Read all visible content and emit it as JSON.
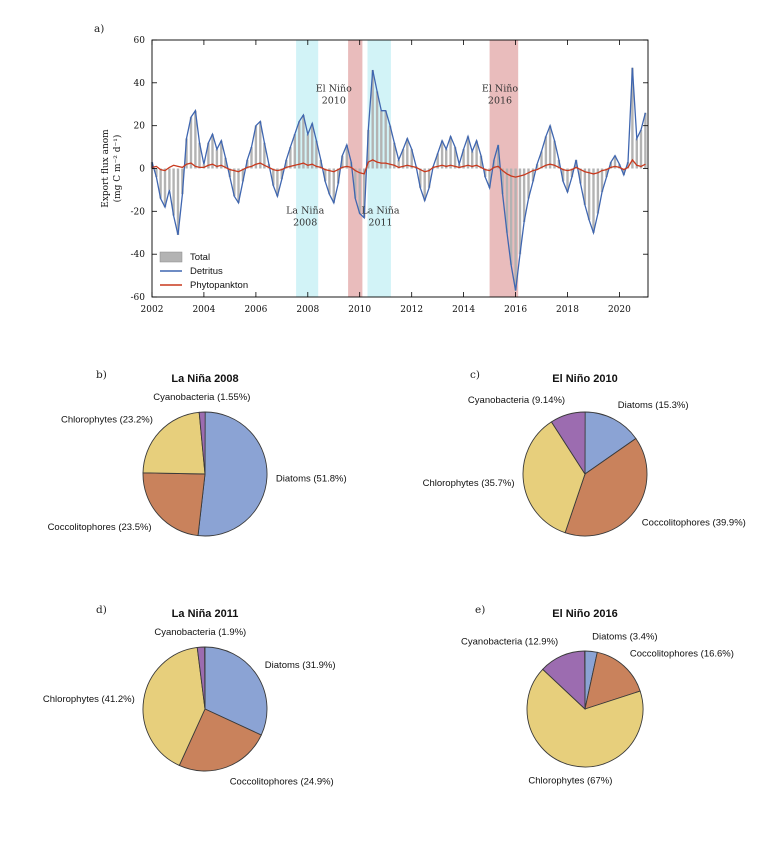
{
  "colors": {
    "total": "#b3b3b3",
    "detritus": "#3f66b0",
    "phytoplankton": "#c8391d",
    "elnino_band": "#e9bcbc",
    "lanina_band": "#d2f3f7",
    "axis": "#000000",
    "pie_edge": "#3a3a3a",
    "pie_slices": {
      "Diatoms": "#8ba3d4",
      "Coccolitophores": "#c9825c",
      "Chlorophytes": "#e7cf7c",
      "Cyanobacteria": "#9c6cb0"
    }
  },
  "chart_data": [
    {
      "id": "export-flux-timeseries",
      "panel_label": "a)",
      "type": "area",
      "ylabel": [
        "Export flux anom",
        "(mg C m⁻² d⁻¹)"
      ],
      "xlim": [
        2002,
        2021.1
      ],
      "ylim": [
        -60,
        60
      ],
      "xticks": [
        2002,
        2004,
        2006,
        2008,
        2010,
        2012,
        2014,
        2016,
        2018,
        2020
      ],
      "yticks": [
        -60,
        -40,
        -20,
        0,
        20,
        40,
        60
      ],
      "grid": false,
      "bands": [
        {
          "kind": "lanina",
          "x0": 2007.55,
          "x1": 2008.4
        },
        {
          "kind": "elnino",
          "x0": 2009.55,
          "x1": 2010.1
        },
        {
          "kind": "lanina",
          "x0": 2010.3,
          "x1": 2011.2
        },
        {
          "kind": "elnino",
          "x0": 2015.0,
          "x1": 2016.1
        }
      ],
      "annotations": [
        {
          "lines": [
            "El Niño",
            "2010"
          ],
          "x": 2009.0,
          "y": 36
        },
        {
          "lines": [
            "El Niño",
            "2016"
          ],
          "x": 2015.4,
          "y": 36
        },
        {
          "lines": [
            "La Niña",
            "2008"
          ],
          "x": 2007.9,
          "y": -21
        },
        {
          "lines": [
            "La Niña",
            "2011"
          ],
          "x": 2010.8,
          "y": -21
        }
      ],
      "legend": [
        {
          "label": "Total",
          "swatch": "area"
        },
        {
          "label": "Detritus",
          "swatch": "line"
        },
        {
          "label": "Phytopankton",
          "swatch": "line"
        }
      ],
      "x": [
        2002,
        2002.17,
        2002.33,
        2002.5,
        2002.67,
        2002.83,
        2003,
        2003.17,
        2003.33,
        2003.5,
        2003.67,
        2003.83,
        2004,
        2004.17,
        2004.33,
        2004.5,
        2004.67,
        2004.83,
        2005,
        2005.17,
        2005.33,
        2005.5,
        2005.67,
        2005.83,
        2006,
        2006.17,
        2006.33,
        2006.5,
        2006.67,
        2006.83,
        2007,
        2007.17,
        2007.33,
        2007.5,
        2007.67,
        2007.83,
        2008,
        2008.17,
        2008.33,
        2008.5,
        2008.67,
        2008.83,
        2009,
        2009.17,
        2009.33,
        2009.5,
        2009.67,
        2009.83,
        2010,
        2010.17,
        2010.33,
        2010.5,
        2010.67,
        2010.83,
        2011,
        2011.17,
        2011.33,
        2011.5,
        2011.67,
        2011.83,
        2012,
        2012.17,
        2012.33,
        2012.5,
        2012.67,
        2012.83,
        2013,
        2013.17,
        2013.33,
        2013.5,
        2013.67,
        2013.83,
        2014,
        2014.17,
        2014.33,
        2014.5,
        2014.67,
        2014.83,
        2015,
        2015.17,
        2015.33,
        2015.5,
        2015.67,
        2015.83,
        2016,
        2016.17,
        2016.33,
        2016.5,
        2016.67,
        2016.83,
        2017,
        2017.17,
        2017.33,
        2017.5,
        2017.67,
        2017.83,
        2018,
        2018.17,
        2018.33,
        2018.5,
        2018.67,
        2018.83,
        2019,
        2019.17,
        2019.33,
        2019.5,
        2019.67,
        2019.83,
        2020,
        2020.17,
        2020.33,
        2020.5,
        2020.67,
        2020.83,
        2021
      ],
      "series": [
        {
          "name": "Total",
          "style": "bars",
          "values": [
            3,
            -4,
            -14,
            -18,
            -10,
            -22,
            -31,
            -12,
            14,
            24,
            27,
            12,
            2,
            12,
            16,
            9,
            13,
            5,
            -4,
            -13,
            -16,
            -6,
            4,
            10,
            20,
            22,
            12,
            2,
            -8,
            -13,
            -5,
            4,
            10,
            16,
            22,
            25,
            16,
            21,
            13,
            4,
            -6,
            -12,
            -16,
            -7,
            6,
            11,
            3,
            -14,
            -21,
            -23,
            18,
            46,
            36,
            27,
            27,
            20,
            12,
            4,
            9,
            14,
            9,
            1,
            -9,
            -15,
            -9,
            1,
            7,
            13,
            9,
            15,
            10,
            2,
            9,
            15,
            8,
            13,
            6,
            -4,
            -9,
            4,
            11,
            -12,
            -30,
            -45,
            -57,
            -40,
            -25,
            -14,
            -6,
            2,
            8,
            15,
            20,
            13,
            4,
            -6,
            -11,
            -4,
            4,
            -7,
            -17,
            -24,
            -30,
            -21,
            -11,
            -4,
            3,
            6,
            2,
            -3,
            3,
            47,
            14,
            18,
            26
          ]
        },
        {
          "name": "Detritus",
          "style": "line",
          "values": [
            3,
            -4,
            -14,
            -18,
            -10,
            -22,
            -31,
            -12,
            14,
            24,
            27,
            12,
            2,
            12,
            16,
            9,
            13,
            5,
            -4,
            -13,
            -16,
            -6,
            4,
            10,
            20,
            22,
            12,
            2,
            -8,
            -13,
            -5,
            4,
            10,
            16,
            22,
            25,
            16,
            21,
            13,
            4,
            -6,
            -12,
            -16,
            -7,
            6,
            11,
            3,
            -14,
            -21,
            -23,
            18,
            46,
            36,
            27,
            27,
            20,
            12,
            4,
            9,
            14,
            9,
            1,
            -9,
            -15,
            -9,
            1,
            7,
            13,
            9,
            15,
            10,
            2,
            9,
            15,
            8,
            13,
            6,
            -4,
            -9,
            4,
            11,
            -12,
            -30,
            -45,
            -57,
            -40,
            -25,
            -14,
            -6,
            2,
            8,
            15,
            20,
            13,
            4,
            -6,
            -11,
            -4,
            4,
            -7,
            -17,
            -24,
            -30,
            -21,
            -11,
            -4,
            3,
            6,
            2,
            -3,
            3,
            47,
            14,
            18,
            26
          ]
        },
        {
          "name": "Phytopankton",
          "style": "line",
          "values": [
            0.5,
            1,
            -0.5,
            -1,
            0.5,
            1.5,
            1,
            0.5,
            2,
            2.5,
            1,
            0.5,
            0.5,
            1.5,
            2,
            1,
            1.5,
            0.5,
            -0.5,
            -1,
            -1.5,
            -0.5,
            0.5,
            1,
            2,
            2.5,
            1.5,
            0.5,
            -0.5,
            -1,
            -0.5,
            0.5,
            1,
            1.5,
            2,
            2.5,
            1.5,
            2,
            1,
            0.5,
            -0.5,
            -1,
            -1.5,
            -0.5,
            0.5,
            1,
            0.5,
            -1,
            -2,
            -2.5,
            3,
            4,
            3,
            2.5,
            2.5,
            2,
            1.5,
            0.5,
            1,
            1.5,
            1,
            0.5,
            -0.5,
            -1.5,
            -1,
            0.5,
            1,
            1.5,
            1,
            1.5,
            1,
            0.5,
            1,
            1.5,
            1,
            1.5,
            0.5,
            -0.5,
            -1,
            0.5,
            1,
            -1,
            -2.5,
            -3.5,
            -4,
            -3.5,
            -3,
            -2,
            -1,
            -0.5,
            0.5,
            1.5,
            2,
            1.5,
            0.5,
            -0.5,
            -1,
            -0.5,
            0.5,
            -0.5,
            -1.5,
            -2,
            -2.5,
            -2,
            -1,
            -0.5,
            0.5,
            1,
            0.5,
            -0.5,
            0.5,
            4,
            1.5,
            1,
            2
          ]
        }
      ]
    },
    {
      "id": "pie-la-nina-2008",
      "panel_label": "b)",
      "type": "pie",
      "title": "La Niña 2008",
      "slices": [
        {
          "label": "Diatoms",
          "pct": 51.8,
          "label_text": "Diatoms (51.8%)"
        },
        {
          "label": "Coccolitophores",
          "pct": 23.5,
          "label_text": "Coccolitophores (23.5%)"
        },
        {
          "label": "Chlorophytes",
          "pct": 23.2,
          "label_text": "Chlorophytes (23.2%)"
        },
        {
          "label": "Cyanobacteria",
          "pct": 1.55,
          "label_text": "Cyanobacteria (1.55%)"
        }
      ]
    },
    {
      "id": "pie-el-nino-2010",
      "panel_label": "c)",
      "type": "pie",
      "title": "El Niño 2010",
      "slices": [
        {
          "label": "Diatoms",
          "pct": 15.3,
          "label_text": "Diatoms (15.3%)"
        },
        {
          "label": "Coccolitophores",
          "pct": 39.9,
          "label_text": "Coccolitophores (39.9%)"
        },
        {
          "label": "Chlorophytes",
          "pct": 35.7,
          "label_text": "Chlorophytes (35.7%)"
        },
        {
          "label": "Cyanobacteria",
          "pct": 9.14,
          "label_text": "Cyanobacteria (9.14%)"
        }
      ]
    },
    {
      "id": "pie-la-nina-2011",
      "panel_label": "d)",
      "type": "pie",
      "title": "La Niña 2011",
      "slices": [
        {
          "label": "Diatoms",
          "pct": 31.9,
          "label_text": "Diatoms (31.9%)"
        },
        {
          "label": "Coccolitophores",
          "pct": 24.9,
          "label_text": "Coccolitophores (24.9%)"
        },
        {
          "label": "Chlorophytes",
          "pct": 41.2,
          "label_text": "Chlorophytes (41.2%)"
        },
        {
          "label": "Cyanobacteria",
          "pct": 1.9,
          "label_text": "Cyanobacteria (1.9%)"
        }
      ]
    },
    {
      "id": "pie-el-nino-2016",
      "panel_label": "e)",
      "type": "pie",
      "title": "El Niño 2016",
      "slices": [
        {
          "label": "Diatoms",
          "pct": 3.4,
          "label_text": "Diatoms (3.4%)"
        },
        {
          "label": "Coccolitophores",
          "pct": 16.6,
          "label_text": "Coccolitophores (16.6%)"
        },
        {
          "label": "Chlorophytes",
          "pct": 67,
          "label_text": "Chlorophytes (67%)"
        },
        {
          "label": "Cyanobacteria",
          "pct": 12.9,
          "label_text": "Cyanobacteria (12.9%)"
        }
      ]
    }
  ]
}
